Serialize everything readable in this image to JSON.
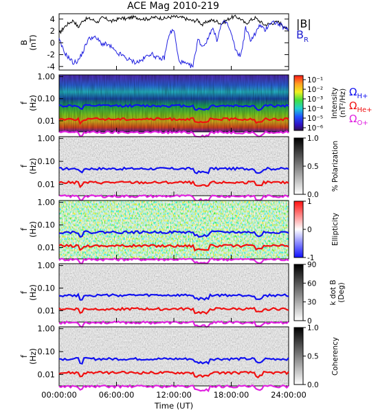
{
  "chart_data": {
    "title": "ACE Mag 2010-219",
    "type": "line",
    "x_label": "Time (UT)",
    "x_ticks": [
      "00:00:00",
      "06:00:00",
      "12:00:00",
      "18:00:00",
      "24:00:00"
    ],
    "x_range_hours": [
      0,
      24
    ],
    "panels": [
      {
        "id": "b",
        "type": "line",
        "ylabel": [
          "B",
          "(nT)"
        ],
        "yticks": [
          "4",
          "2",
          "0",
          "-2",
          "-4"
        ],
        "ytick_values": [
          4,
          2,
          0,
          -2,
          -4
        ],
        "ylim": [
          -4.6,
          4.9
        ],
        "legend": [
          "|B|",
          "B_R"
        ],
        "series": [
          {
            "name": "|B|",
            "color": "#000000",
            "t": [
              0,
              0.5,
              1,
              1.5,
              2,
              2.5,
              3,
              3.5,
              4,
              4.5,
              5,
              5.5,
              6,
              6.5,
              7,
              7.5,
              8,
              8.5,
              9,
              9.5,
              10,
              10.5,
              11,
              11.5,
              12,
              12.5,
              13,
              13.5,
              14,
              14.5,
              15,
              15.5,
              16,
              16.5,
              17,
              17.5,
              18,
              18.5,
              19,
              19.5,
              20,
              20.5,
              21,
              21.5,
              22,
              22.5,
              23,
              23.5,
              24
            ],
            "v": [
              1.5,
              2.6,
              3.3,
              3.8,
              2.6,
              3.8,
              4.1,
              3.9,
              3.5,
              4.2,
              4.0,
              3.6,
              3.9,
              4.2,
              4.0,
              4.3,
              4.3,
              4.1,
              4.0,
              4.1,
              4.3,
              4.2,
              4.1,
              4.3,
              4.4,
              4.3,
              4.2,
              3.9,
              3.7,
              3.8,
              3.0,
              3.6,
              3.8,
              3.6,
              3.2,
              3.8,
              4.3,
              4.4,
              4.0,
              3.2,
              3.8,
              4.2,
              3.6,
              3.0,
              3.2,
              3.4,
              3.5,
              2.8,
              2.0
            ]
          },
          {
            "name": "B_R",
            "color": "#1f1fe0",
            "t": [
              0,
              0.5,
              1,
              1.5,
              2,
              2.5,
              3,
              3.5,
              4,
              4.5,
              5,
              5.5,
              6,
              6.5,
              7,
              7.5,
              8,
              8.5,
              9,
              9.5,
              10,
              10.5,
              11,
              11.5,
              12,
              12.5,
              13,
              13.5,
              14,
              14.5,
              15,
              15.5,
              16,
              16.5,
              17,
              17.5,
              18,
              18.5,
              19,
              19.5,
              20,
              20.5,
              21,
              21.5,
              22,
              22.5,
              23,
              23.5,
              24
            ],
            "v": [
              0.5,
              -1.5,
              -2.5,
              -3.4,
              -3.0,
              -1.5,
              0.5,
              1.0,
              0.6,
              -0.2,
              -0.3,
              -0.8,
              -1.8,
              -2.0,
              -2.6,
              -3.0,
              -3.3,
              -3.1,
              -2.5,
              -1.8,
              -2.2,
              -2.8,
              -2.5,
              1.5,
              2.2,
              -3.0,
              -3.4,
              -3.8,
              -4.0,
              0.6,
              -0.6,
              0.4,
              2.6,
              0.5,
              3.2,
              3.5,
              1.5,
              -1.5,
              -2.2,
              2.5,
              0.5,
              1.5,
              3.0,
              2.0,
              3.3,
              3.5,
              3.1,
              2.6,
              2.0
            ]
          }
        ]
      },
      {
        "id": "intensity",
        "type": "heatmap",
        "ylabel": [
          "f",
          "(Hz)"
        ],
        "yticks": [
          "1.00",
          "0.10",
          "0.01"
        ],
        "ytick_values": [
          1.0,
          0.1,
          0.01
        ],
        "ylim_log10": [
          -2.5,
          0.08
        ],
        "colorbar_ticks": [
          "10⁻¹",
          "10⁻²",
          "10⁻³",
          "10⁻⁴",
          "10⁻⁵",
          "10⁻⁶"
        ],
        "colorbar_label": [
          "Intensity",
          "(nT²/Hz)"
        ],
        "colorbar_colors": [
          "#ff1818",
          "#ffa020",
          "#f0f020",
          "#40e040",
          "#20d0d0",
          "#2050ff",
          "#3010c0",
          "#301050"
        ],
        "legend": [
          "ΩH+",
          "ΩHe+",
          "ΩO+"
        ]
      },
      {
        "id": "polarization",
        "type": "heatmap",
        "ylabel": [
          "f",
          "(Hz)"
        ],
        "yticks": [
          "1.00",
          "0.10",
          "0.01"
        ],
        "ytick_values": [
          1.0,
          0.1,
          0.01
        ],
        "colorbar_ticks": [
          "1.0",
          "0.5",
          "0.0"
        ],
        "colorbar_label": [
          "% Polarization"
        ],
        "colorbar_colors": [
          "#000000",
          "#ffffff"
        ]
      },
      {
        "id": "ellipticity",
        "type": "heatmap",
        "ylabel": [
          "f",
          "(Hz)"
        ],
        "yticks": [
          "1.00",
          "0.10",
          "0.01"
        ],
        "ytick_values": [
          1.0,
          0.1,
          0.01
        ],
        "colorbar_ticks": [
          "1",
          "0",
          "-1"
        ],
        "colorbar_label": [
          "Ellipticity"
        ],
        "colorbar_colors": [
          "#ff1010",
          "#ffffff",
          "#1010ff"
        ]
      },
      {
        "id": "kdotb",
        "type": "heatmap",
        "ylabel": [
          "f",
          "(Hz)"
        ],
        "yticks": [
          "1.00",
          "0.10",
          "0.01"
        ],
        "ytick_values": [
          1.0,
          0.1,
          0.01
        ],
        "colorbar_ticks": [
          "90",
          "60",
          "30",
          "0"
        ],
        "colorbar_label": [
          "k dot B",
          "(Deg)"
        ],
        "colorbar_colors": [
          "#000000",
          "#ffffff"
        ]
      },
      {
        "id": "coherency",
        "type": "heatmap",
        "ylabel": [
          "f",
          "(Hz)"
        ],
        "yticks": [
          "1.00",
          "0.10",
          "0.01"
        ],
        "ytick_values": [
          1.0,
          0.1,
          0.01
        ],
        "colorbar_ticks": [
          "1.0",
          "0.5",
          "0.0"
        ],
        "colorbar_label": [
          "Coherency"
        ],
        "colorbar_colors": [
          "#000000",
          "#ffffff"
        ]
      }
    ],
    "gyrofrequency_lines": [
      {
        "name": "ΩH+",
        "color": "#1010f0",
        "f_hz_approx": 0.048
      },
      {
        "name": "ΩHe+",
        "color": "#f01010",
        "f_hz_approx": 0.012
      },
      {
        "name": "ΩO+",
        "color": "#e020e0",
        "f_hz_approx": 0.003
      }
    ]
  }
}
